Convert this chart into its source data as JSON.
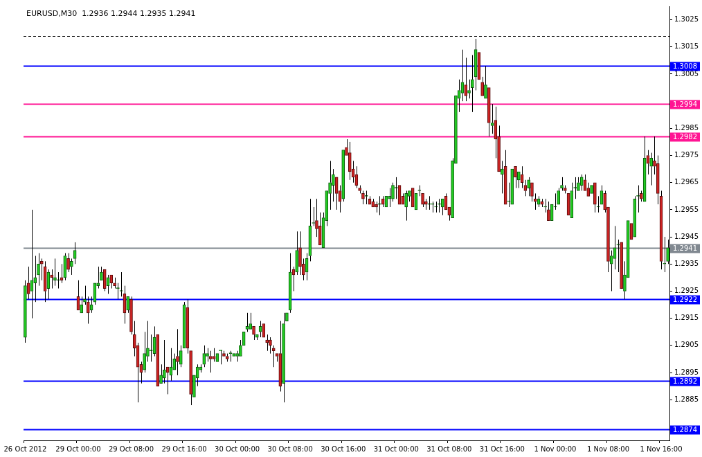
{
  "chart_data": {
    "type": "candlestick",
    "title": "EURUSD,M30  1.2936 1.2944 1.2935 1.2941",
    "categories": [
      "26 Oct 2012",
      null,
      null,
      null,
      null,
      null,
      null,
      null,
      null,
      null,
      null,
      null,
      null,
      null,
      null,
      null,
      "29 Oct 00:00",
      null,
      null,
      null,
      null,
      null,
      null,
      null,
      null,
      null,
      null,
      null,
      null,
      null,
      null,
      null,
      "29 Oct 08:00",
      null,
      null,
      null,
      null,
      null,
      null,
      null,
      null,
      null,
      null,
      null,
      null,
      null,
      null,
      null,
      "29 Oct 16:00",
      null,
      null,
      null,
      null,
      null,
      null,
      null,
      null,
      null,
      null,
      null,
      null,
      null,
      null,
      null,
      "30 Oct 00:00",
      null,
      null,
      null,
      null,
      null,
      null,
      null,
      null,
      null,
      null,
      null,
      null,
      null,
      null,
      null,
      "30 Oct 08:00",
      null,
      null,
      null,
      null,
      null,
      null,
      null,
      null,
      null,
      null,
      null,
      null,
      null,
      null,
      null,
      "30 Oct 16:00",
      null,
      null,
      null,
      null,
      null,
      null,
      null,
      null,
      null,
      null,
      null,
      null,
      null,
      null,
      null,
      "31 Oct 00:00",
      null,
      null,
      null,
      null,
      null,
      null,
      null,
      null,
      null,
      null,
      null,
      null,
      null,
      null,
      null,
      "31 Oct 08:00",
      null,
      null,
      null,
      null,
      null,
      null,
      null,
      null,
      null,
      null,
      null,
      null,
      null,
      null,
      null,
      "31 Oct 16:00",
      null,
      null,
      null,
      null,
      null,
      null,
      null,
      null,
      null,
      null,
      null,
      null,
      null,
      null,
      null,
      "1 Nov 00:00",
      null,
      null,
      null,
      null,
      null,
      null,
      null,
      null,
      null,
      null,
      null,
      null,
      null,
      null,
      null,
      "1 Nov 08:00",
      null,
      null,
      null,
      null,
      null,
      null,
      null,
      null,
      null,
      null,
      null,
      null,
      null,
      null,
      null,
      "1 Nov 16:00",
      null,
      null
    ],
    "ohlc": [
      [
        1.2908,
        1.2929,
        1.2906,
        1.2927
      ],
      [
        1.2928,
        1.2934,
        1.2922,
        1.2924
      ],
      [
        1.2925,
        1.2955,
        1.2915,
        1.2929
      ],
      [
        1.2928,
        1.2938,
        1.2921,
        1.293
      ],
      [
        1.2931,
        1.2939,
        1.2927,
        1.2935
      ],
      [
        1.2936,
        1.2937,
        1.2929,
        1.2935
      ],
      [
        1.2934,
        1.2936,
        1.2921,
        1.2925
      ],
      [
        1.2926,
        1.2933,
        1.2922,
        1.2932
      ],
      [
        1.2931,
        1.2933,
        1.2926,
        1.293
      ],
      [
        1.2929,
        1.2937,
        1.2927,
        1.293
      ],
      [
        1.2929,
        1.2932,
        1.2926,
        1.2929
      ],
      [
        1.293,
        1.2935,
        1.2928,
        1.2929
      ],
      [
        1.293,
        1.2939,
        1.2929,
        1.2938
      ],
      [
        1.2937,
        1.2939,
        1.2932,
        1.2933
      ],
      [
        1.2934,
        1.2937,
        1.2931,
        1.2936
      ],
      [
        1.2937,
        1.2943,
        1.2935,
        1.294
      ],
      [
        1.2923,
        1.2929,
        1.2918,
        1.2918
      ],
      [
        1.2917,
        1.2923,
        1.2917,
        1.292
      ],
      [
        1.2921,
        1.2927,
        1.292,
        1.2922
      ],
      [
        1.2921,
        1.2923,
        1.2913,
        1.2917
      ],
      [
        1.2918,
        1.2923,
        1.2917,
        1.292
      ],
      [
        1.2921,
        1.2928,
        1.292,
        1.2928
      ],
      [
        1.2927,
        1.2934,
        1.2926,
        1.2928
      ],
      [
        1.2929,
        1.2934,
        1.2929,
        1.2932
      ],
      [
        1.2933,
        1.2933,
        1.2925,
        1.2926
      ],
      [
        1.2927,
        1.2931,
        1.2924,
        1.293
      ],
      [
        1.2931,
        1.2931,
        1.2926,
        1.2928
      ],
      [
        1.2928,
        1.293,
        1.2926,
        1.2927
      ],
      [
        1.2926,
        1.2928,
        1.2922,
        1.2926
      ],
      [
        1.2925,
        1.2932,
        1.2923,
        1.2925
      ],
      [
        1.2924,
        1.2927,
        1.2913,
        1.2917
      ],
      [
        1.2918,
        1.2923,
        1.2917,
        1.2923
      ],
      [
        1.2922,
        1.2923,
        1.2909,
        1.291
      ],
      [
        1.2909,
        1.2914,
        1.2901,
        1.2904
      ],
      [
        1.2905,
        1.2906,
        1.2884,
        1.2897
      ],
      [
        1.2898,
        1.2899,
        1.2891,
        1.2895
      ],
      [
        1.2896,
        1.291,
        1.2895,
        1.2902
      ],
      [
        1.2901,
        1.2914,
        1.2899,
        1.2904
      ],
      [
        1.2903,
        1.2909,
        1.2899,
        1.2903
      ],
      [
        1.2902,
        1.2912,
        1.2901,
        1.2908
      ],
      [
        1.2909,
        1.2909,
        1.289,
        1.289
      ],
      [
        1.2891,
        1.2898,
        1.2891,
        1.2894
      ],
      [
        1.2893,
        1.2907,
        1.2891,
        1.2896
      ],
      [
        1.2897,
        1.2897,
        1.2887,
        1.2895
      ],
      [
        1.2894,
        1.2904,
        1.2892,
        1.2897
      ],
      [
        1.2896,
        1.2902,
        1.2896,
        1.29
      ],
      [
        1.2901,
        1.2911,
        1.2894,
        1.2899
      ],
      [
        1.2898,
        1.2905,
        1.2897,
        1.2903
      ],
      [
        1.2904,
        1.2921,
        1.2904,
        1.292
      ],
      [
        1.2919,
        1.2922,
        1.2902,
        1.2904
      ],
      [
        1.2903,
        1.2903,
        1.2883,
        1.2887
      ],
      [
        1.2886,
        1.2894,
        1.2886,
        1.2894
      ],
      [
        1.2893,
        1.2898,
        1.289,
        1.2897
      ],
      [
        1.2896,
        1.2898,
        1.2895,
        1.2897
      ],
      [
        1.2898,
        1.2905,
        1.2897,
        1.2902
      ],
      [
        1.2901,
        1.2904,
        1.2899,
        1.2902
      ],
      [
        1.2901,
        1.2903,
        1.2895,
        1.29
      ],
      [
        1.2901,
        1.2904,
        1.2899,
        1.29
      ],
      [
        1.2899,
        1.2902,
        1.2899,
        1.2902
      ],
      [
        1.2903,
        1.2903,
        1.2898,
        1.2903
      ],
      [
        1.2902,
        1.2903,
        1.2901,
        1.2901
      ],
      [
        1.2901,
        1.2902,
        1.2899,
        1.29
      ],
      [
        1.2902,
        1.2903,
        1.2899,
        1.2902
      ],
      [
        1.2901,
        1.2902,
        1.2901,
        1.2902
      ],
      [
        1.2901,
        1.2903,
        1.2899,
        1.2902
      ],
      [
        1.2901,
        1.2907,
        1.2901,
        1.2905
      ],
      [
        1.2905,
        1.291,
        1.2905,
        1.291
      ],
      [
        1.2911,
        1.2917,
        1.291,
        1.2912
      ],
      [
        1.2911,
        1.2917,
        1.2911,
        1.2913
      ],
      [
        1.2912,
        1.2912,
        1.2907,
        1.2909
      ],
      [
        1.2908,
        1.2909,
        1.2907,
        1.2909
      ],
      [
        1.291,
        1.2914,
        1.2908,
        1.2912
      ],
      [
        1.2913,
        1.2913,
        1.2908,
        1.2908
      ],
      [
        1.2907,
        1.2909,
        1.2903,
        1.2906
      ],
      [
        1.2907,
        1.2908,
        1.2902,
        1.2905
      ],
      [
        1.2904,
        1.2905,
        1.2897,
        1.2903
      ],
      [
        1.2902,
        1.2902,
        1.2899,
        1.2901
      ],
      [
        1.2902,
        1.2914,
        1.2888,
        1.289
      ],
      [
        1.2891,
        1.2917,
        1.2884,
        1.2913
      ],
      [
        1.2914,
        1.2917,
        1.2914,
        1.2917
      ],
      [
        1.2918,
        1.2939,
        1.2917,
        1.2932
      ],
      [
        1.2933,
        1.2934,
        1.2925,
        1.2931
      ],
      [
        1.2932,
        1.2947,
        1.2931,
        1.294
      ],
      [
        1.2941,
        1.2947,
        1.2931,
        1.2934
      ],
      [
        1.2935,
        1.2937,
        1.2929,
        1.2931
      ],
      [
        1.2932,
        1.2939,
        1.2929,
        1.2937
      ],
      [
        1.2938,
        1.2959,
        1.2936,
        1.2949
      ],
      [
        1.295,
        1.2956,
        1.2949,
        1.295
      ],
      [
        1.2951,
        1.2959,
        1.2945,
        1.2948
      ],
      [
        1.2949,
        1.2954,
        1.2942,
        1.2942
      ],
      [
        1.2941,
        1.2954,
        1.2941,
        1.2952
      ],
      [
        1.2951,
        1.2962,
        1.2949,
        1.2962
      ],
      [
        1.2961,
        1.2973,
        1.2955,
        1.2965
      ],
      [
        1.2964,
        1.297,
        1.2958,
        1.2968
      ],
      [
        1.2967,
        1.2967,
        1.2955,
        1.2961
      ],
      [
        1.2962,
        1.2964,
        1.2954,
        1.2958
      ],
      [
        1.2959,
        1.2977,
        1.2958,
        1.2977
      ],
      [
        1.2978,
        1.2981,
        1.2975,
        1.2975
      ],
      [
        1.2976,
        1.298,
        1.2966,
        1.2969
      ],
      [
        1.297,
        1.2973,
        1.2965,
        1.2967
      ],
      [
        1.2968,
        1.2971,
        1.2963,
        1.2964
      ],
      [
        1.2963,
        1.2964,
        1.2961,
        1.2962
      ],
      [
        1.2961,
        1.2962,
        1.2957,
        1.2959
      ],
      [
        1.296,
        1.2962,
        1.2957,
        1.296
      ],
      [
        1.2959,
        1.296,
        1.2957,
        1.2957
      ],
      [
        1.2958,
        1.2959,
        1.2956,
        1.2956
      ],
      [
        1.2957,
        1.2958,
        1.2954,
        1.2956
      ],
      [
        1.2957,
        1.296,
        1.2953,
        1.2957
      ],
      [
        1.2959,
        1.296,
        1.2956,
        1.2957
      ],
      [
        1.2956,
        1.296,
        1.2956,
        1.296
      ],
      [
        1.2959,
        1.2963,
        1.2956,
        1.296
      ],
      [
        1.2959,
        1.2965,
        1.2958,
        1.2964
      ],
      [
        1.2963,
        1.2967,
        1.2959,
        1.2963
      ],
      [
        1.2964,
        1.2964,
        1.2957,
        1.2957
      ],
      [
        1.296,
        1.2961,
        1.2957,
        1.2957
      ],
      [
        1.2956,
        1.2962,
        1.2951,
        1.2961
      ],
      [
        1.296,
        1.2962,
        1.2958,
        1.2962
      ],
      [
        1.2963,
        1.2963,
        1.2956,
        1.2956
      ],
      [
        1.2955,
        1.2961,
        1.2955,
        1.2961
      ],
      [
        1.2962,
        1.2964,
        1.296,
        1.2962
      ],
      [
        1.2961,
        1.2961,
        1.2956,
        1.2957
      ],
      [
        1.2958,
        1.2959,
        1.2955,
        1.2957
      ],
      [
        1.2957,
        1.296,
        1.2955,
        1.2957
      ],
      [
        1.2957,
        1.2958,
        1.2954,
        1.2957
      ],
      [
        1.2956,
        1.2958,
        1.2954,
        1.2956
      ],
      [
        1.2957,
        1.2959,
        1.2954,
        1.2957
      ],
      [
        1.2956,
        1.2959,
        1.2953,
        1.2959
      ],
      [
        1.296,
        1.2961,
        1.2955,
        1.2955
      ],
      [
        1.2956,
        1.2956,
        1.2951,
        1.2953
      ],
      [
        1.2952,
        1.2974,
        1.2952,
        1.2973
      ],
      [
        1.2972,
        1.2997,
        1.2972,
        1.2997
      ],
      [
        1.2996,
        1.3003,
        1.2991,
        1.2999
      ],
      [
        1.2998,
        1.3014,
        1.2995,
        1.3002
      ],
      [
        1.3001,
        1.3011,
        1.2995,
        1.2997
      ],
      [
        1.2998,
        1.3003,
        1.2996,
        1.2999
      ],
      [
        1.3,
        1.3012,
        1.2991,
        1.3003
      ],
      [
        1.3004,
        1.3018,
        1.2999,
        1.3014
      ],
      [
        1.3013,
        1.3013,
        1.3003,
        1.3003
      ],
      [
        1.3002,
        1.3004,
        1.2997,
        1.2997
      ],
      [
        1.2996,
        1.3008,
        1.2996,
        1.3001
      ],
      [
        1.3,
        1.3,
        1.2982,
        1.2987
      ],
      [
        1.2986,
        1.2994,
        1.2983,
        1.2987
      ],
      [
        1.2988,
        1.2993,
        1.2974,
        1.2981
      ],
      [
        1.2982,
        1.2986,
        1.2969,
        1.2969
      ],
      [
        1.2968,
        1.2973,
        1.2961,
        1.297
      ],
      [
        1.2971,
        1.2977,
        1.2957,
        1.2957
      ],
      [
        1.2958,
        1.2965,
        1.2956,
        1.2958
      ],
      [
        1.2957,
        1.297,
        1.2957,
        1.297
      ],
      [
        1.2971,
        1.2971,
        1.2963,
        1.2967
      ],
      [
        1.2966,
        1.2969,
        1.2963,
        1.2969
      ],
      [
        1.2968,
        1.2971,
        1.2963,
        1.2965
      ],
      [
        1.2964,
        1.2966,
        1.296,
        1.2962
      ],
      [
        1.2963,
        1.2967,
        1.296,
        1.2966
      ],
      [
        1.2965,
        1.2965,
        1.2958,
        1.296
      ],
      [
        1.2959,
        1.2961,
        1.2955,
        1.2958
      ],
      [
        1.2957,
        1.296,
        1.2956,
        1.2959
      ],
      [
        1.2958,
        1.2959,
        1.2956,
        1.2957
      ],
      [
        1.2956,
        1.2959,
        1.2954,
        1.2956
      ],
      [
        1.2955,
        1.2958,
        1.2951,
        1.2951
      ],
      [
        1.2951,
        1.2957,
        1.2951,
        1.2957
      ],
      [
        1.2956,
        1.2961,
        1.2955,
        1.2956
      ],
      [
        1.2957,
        1.2963,
        1.2957,
        1.2962
      ],
      [
        1.2963,
        1.2967,
        1.2962,
        1.2964
      ],
      [
        1.2963,
        1.2964,
        1.2961,
        1.2962
      ],
      [
        1.2961,
        1.2961,
        1.2953,
        1.2953
      ],
      [
        1.2952,
        1.2965,
        1.2952,
        1.2962
      ],
      [
        1.2963,
        1.2967,
        1.2959,
        1.2963
      ],
      [
        1.2962,
        1.2967,
        1.2962,
        1.2965
      ],
      [
        1.2964,
        1.2968,
        1.2962,
        1.2967
      ],
      [
        1.2966,
        1.2968,
        1.2962,
        1.2962
      ],
      [
        1.2963,
        1.2965,
        1.296,
        1.296
      ],
      [
        1.2961,
        1.2964,
        1.2961,
        1.2964
      ],
      [
        1.2965,
        1.2965,
        1.2954,
        1.2957
      ],
      [
        1.2956,
        1.296,
        1.2954,
        1.2956
      ],
      [
        1.2957,
        1.2964,
        1.2957,
        1.2962
      ],
      [
        1.2961,
        1.2962,
        1.2954,
        1.2955
      ],
      [
        1.2956,
        1.2956,
        1.2932,
        1.2936
      ],
      [
        1.2935,
        1.294,
        1.2925,
        1.2938
      ],
      [
        1.2937,
        1.2949,
        1.2933,
        1.2941
      ],
      [
        1.2942,
        1.2944,
        1.2932,
        1.2942
      ],
      [
        1.2943,
        1.2943,
        1.2926,
        1.2926
      ],
      [
        1.2925,
        1.2936,
        1.2922,
        1.2931
      ],
      [
        1.293,
        1.2951,
        1.293,
        1.2951
      ],
      [
        1.295,
        1.295,
        1.2944,
        1.2944
      ],
      [
        1.2945,
        1.296,
        1.2945,
        1.2959
      ],
      [
        1.296,
        1.2964,
        1.2954,
        1.296
      ],
      [
        1.2961,
        1.2962,
        1.2958,
        1.2959
      ],
      [
        1.2958,
        1.2982,
        1.2958,
        1.2974
      ],
      [
        1.2975,
        1.2977,
        1.2968,
        1.2972
      ],
      [
        1.2971,
        1.2976,
        1.2964,
        1.2974
      ],
      [
        1.2973,
        1.2982,
        1.2968,
        1.2971
      ],
      [
        1.2972,
        1.2975,
        1.2957,
        1.2961
      ],
      [
        1.296,
        1.2962,
        1.2933,
        1.2936
      ],
      [
        1.2935,
        1.2945,
        1.2932,
        1.2935
      ],
      [
        1.2936,
        1.2944,
        1.2935,
        1.2941
      ]
    ],
    "ylim": [
      1.287,
      1.303
    ],
    "yticks": [
      1.2885,
      1.2895,
      1.2905,
      1.2915,
      1.2925,
      1.2935,
      1.2945,
      1.2955,
      1.2965,
      1.2975,
      1.2985,
      1.3005,
      1.3015,
      1.3025
    ],
    "ref_lines": [
      {
        "axis": "y",
        "value": 1.3019,
        "color": "#000000",
        "line_style": "dashed"
      },
      {
        "axis": "y",
        "value": 1.3008,
        "label": "1.3008",
        "color": "#0000ff"
      },
      {
        "axis": "y",
        "value": 1.2994,
        "label": "1.2994",
        "color": "#ff1493"
      },
      {
        "axis": "y",
        "value": 1.2982,
        "label": "1.2982",
        "color": "#ff1493"
      },
      {
        "axis": "y",
        "value": 1.2941,
        "label": "1.2941",
        "color": "#808890"
      },
      {
        "axis": "y",
        "value": 1.2922,
        "label": "1.2922",
        "color": "#0000ff"
      },
      {
        "axis": "y",
        "value": 1.2892,
        "label": "1.2892",
        "color": "#0000ff"
      },
      {
        "axis": "y",
        "value": 1.2874,
        "label": "1.2874",
        "color": "#0000ff"
      }
    ]
  }
}
